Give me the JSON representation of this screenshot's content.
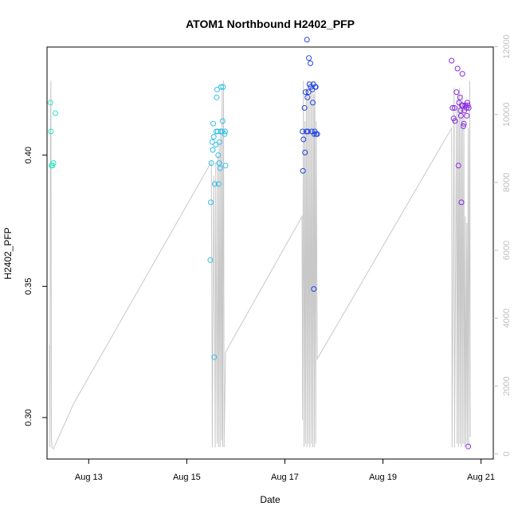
{
  "chart_data": {
    "type": "scatter",
    "title": "ATOM1 Northbound H2402_PFP",
    "xlabel": "Date",
    "ylabel": "H2402_PFP",
    "xlim": [
      12.15,
      21.25
    ],
    "ylim": [
      0.2842,
      0.4412
    ],
    "y2lim": [
      -150,
      11990
    ],
    "grid": false,
    "x_ticks": [
      {
        "value": 13,
        "label": "Aug 13"
      },
      {
        "value": 15,
        "label": "Aug 15"
      },
      {
        "value": 17,
        "label": "Aug 17"
      },
      {
        "value": 19,
        "label": "Aug 19"
      },
      {
        "value": 21,
        "label": "Aug 21"
      }
    ],
    "y_ticks": [
      {
        "value": 0.3,
        "label": "0.30"
      },
      {
        "value": 0.35,
        "label": "0.35"
      },
      {
        "value": 0.4,
        "label": "0.40"
      }
    ],
    "y2_ticks": [
      {
        "value": 0,
        "label": "0"
      },
      {
        "value": 2000,
        "label": "2000"
      },
      {
        "value": 4000,
        "label": "4000"
      },
      {
        "value": 6000,
        "label": "6000"
      },
      {
        "value": 8000,
        "label": "8000"
      },
      {
        "value": 10000,
        "label": "10000"
      },
      {
        "value": 12000,
        "label": "12000"
      }
    ],
    "secondary_line": {
      "color": "#c8c8c8",
      "x": [
        12.2,
        12.21,
        12.22,
        12.23,
        12.24,
        12.25,
        12.28,
        12.7,
        15.5,
        15.51,
        15.52,
        15.55,
        15.56,
        15.58,
        15.59,
        15.62,
        15.63,
        15.65,
        15.66,
        15.68,
        15.69,
        15.71,
        15.72,
        15.73,
        15.75,
        15.76,
        15.79,
        17.35,
        17.36,
        17.38,
        17.39,
        17.41,
        17.42,
        17.44,
        17.45,
        17.47,
        17.48,
        17.5,
        17.51,
        17.53,
        17.54,
        17.56,
        17.57,
        17.59,
        17.6,
        17.61,
        17.63,
        17.64,
        17.66,
        20.4,
        20.41,
        20.45,
        20.46,
        20.5,
        20.51,
        20.53,
        20.54,
        20.56,
        20.57,
        20.59,
        20.6,
        20.62,
        20.63,
        20.65,
        20.66,
        20.68,
        20.69,
        20.71,
        20.72,
        20.74,
        20.75,
        20.77,
        20.78
      ],
      "y": [
        3200,
        200,
        9800,
        11000,
        500,
        200,
        150,
        1500,
        8600,
        5000,
        200,
        8200,
        6000,
        200,
        8600,
        300,
        8800,
        200,
        9200,
        200,
        9600,
        400,
        10800,
        200,
        11000,
        200,
        3000,
        7000,
        1000,
        11000,
        200,
        9800,
        300,
        10800,
        200,
        11000,
        300,
        10500,
        200,
        10800,
        300,
        11000,
        200,
        10600,
        200,
        11000,
        300,
        9800,
        2800,
        9600,
        200,
        10800,
        200,
        10200,
        300,
        10600,
        200,
        10800,
        300,
        10400,
        200,
        10600,
        300,
        10200,
        200,
        7000,
        200,
        6800,
        300,
        9600,
        200,
        11000,
        500
      ]
    },
    "series": [
      {
        "color": "#2be6c4",
        "x": [
          12.22,
          12.23,
          12.24,
          12.26,
          12.28,
          12.32
        ],
        "y": [
          0.42,
          0.409,
          0.396,
          0.396,
          0.397,
          0.416
        ]
      },
      {
        "color": "#33bfe6",
        "x": [
          15.48,
          15.49,
          15.5,
          15.52,
          15.53,
          15.54,
          15.55,
          15.56,
          15.57,
          15.59,
          15.6,
          15.61,
          15.62,
          15.63,
          15.64,
          15.65,
          15.66,
          15.67,
          15.68,
          15.69,
          15.7,
          15.72,
          15.73,
          15.74,
          15.77,
          15.78,
          15.79
        ],
        "y": [
          0.36,
          0.382,
          0.397,
          0.405,
          0.402,
          0.412,
          0.407,
          0.323,
          0.389,
          0.404,
          0.409,
          0.422,
          0.425,
          0.409,
          0.4,
          0.389,
          0.397,
          0.405,
          0.395,
          0.409,
          0.426,
          0.409,
          0.413,
          0.426,
          0.408,
          0.409,
          0.396
        ]
      },
      {
        "color": "#2244e0",
        "x": [
          17.36,
          17.37,
          17.38,
          17.4,
          17.41,
          17.42,
          17.44,
          17.45,
          17.46,
          17.47,
          17.48,
          17.49,
          17.5,
          17.52,
          17.53,
          17.55,
          17.56,
          17.57,
          17.58,
          17.59,
          17.6,
          17.61,
          17.62,
          17.63,
          17.64,
          17.66
        ],
        "y": [
          0.409,
          0.394,
          0.406,
          0.418,
          0.401,
          0.424,
          0.409,
          0.444,
          0.422,
          0.409,
          0.424,
          0.437,
          0.427,
          0.435,
          0.426,
          0.409,
          0.425,
          0.42,
          0.427,
          0.349,
          0.408,
          0.409,
          0.426,
          0.426,
          0.408,
          0.408
        ]
      },
      {
        "color": "#8a2be2",
        "x": [
          20.4,
          20.42,
          20.44,
          20.46,
          20.47,
          20.5,
          20.52,
          20.54,
          20.55,
          20.57,
          20.58,
          20.59,
          20.6,
          20.61,
          20.62,
          20.63,
          20.64,
          20.65,
          20.66,
          20.68,
          20.7,
          20.71,
          20.72,
          20.73,
          20.74,
          20.75
        ],
        "y": [
          0.436,
          0.418,
          0.414,
          0.418,
          0.413,
          0.424,
          0.433,
          0.396,
          0.42,
          0.422,
          0.417,
          0.415,
          0.382,
          0.419,
          0.431,
          0.419,
          0.411,
          0.412,
          0.417,
          0.419,
          0.418,
          0.415,
          0.42,
          0.419,
          0.289,
          0.418
        ]
      }
    ]
  }
}
